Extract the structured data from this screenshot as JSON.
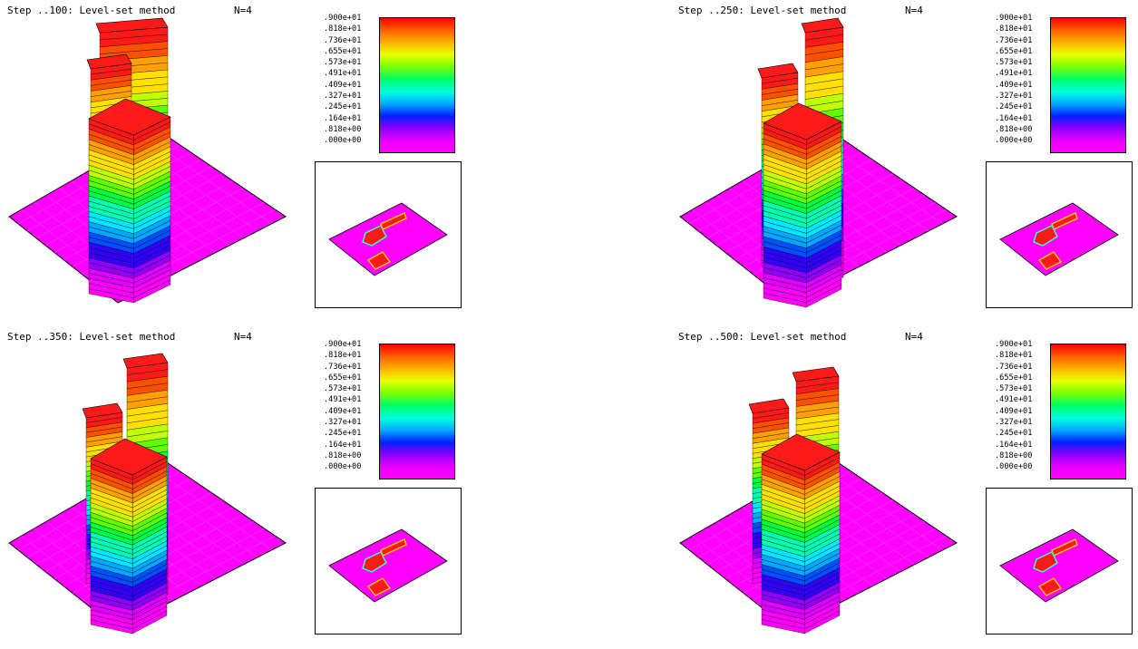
{
  "colorbar": {
    "ticks": [
      ".900e+01",
      ".818e+01",
      ".736e+01",
      ".655e+01",
      ".573e+01",
      ".491e+01",
      ".409e+01",
      ".327e+01",
      ".245e+01",
      ".164e+01",
      ".818e+00",
      ".000e+00"
    ]
  },
  "panels": [
    {
      "title": "Step ..100: Level-set method",
      "n": "N=4",
      "step": 100
    },
    {
      "title": "Step ..250: Level-set method",
      "n": "N=4",
      "step": 250
    },
    {
      "title": "Step ..350: Level-set method",
      "n": "N=4",
      "step": 350
    },
    {
      "title": "Step ..500: Level-set method",
      "n": "N=4",
      "step": 500
    }
  ],
  "colors": {
    "plane": "#ff00ff",
    "top": "#ff1a1a",
    "frame": "#000000"
  }
}
